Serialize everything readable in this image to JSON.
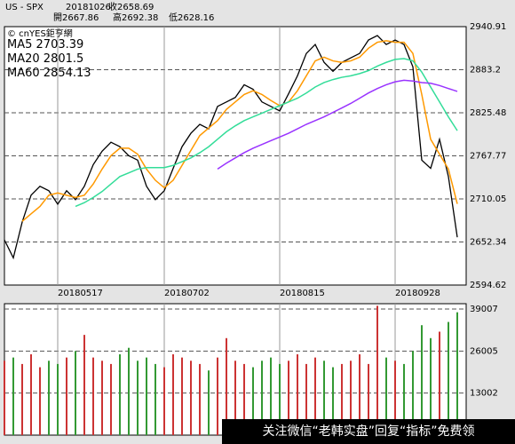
{
  "header": {
    "symbol": "US - SPX",
    "date": "20181026",
    "close": "收2658.69",
    "open": "開2667.86",
    "high": "高2692.38",
    "low": "低2628.16",
    "source": "© cnYES鉅亨網"
  },
  "banner": "关注微信“老韩实盘”回复“指标”免费领",
  "chart_data": [
    {
      "type": "line",
      "categories": [
        null,
        null,
        null,
        null,
        null,
        null,
        "20180517",
        null,
        null,
        null,
        null,
        null,
        null,
        null,
        null,
        null,
        null,
        null,
        "20180702",
        null,
        null,
        null,
        null,
        null,
        null,
        null,
        null,
        null,
        null,
        null,
        null,
        "20180815",
        null,
        null,
        null,
        null,
        null,
        null,
        null,
        null,
        null,
        null,
        null,
        null,
        "20180928",
        null,
        null,
        null,
        null,
        null,
        null,
        null
      ],
      "ylim": [
        2594.62,
        2940.91
      ],
      "yticks": [
        2594.62,
        2652.34,
        2710.05,
        2767.77,
        2825.48,
        2883.2,
        2940.91
      ],
      "grid": true,
      "series": [
        {
          "color": "#000000",
          "values": [
            2655,
            2631,
            2679,
            2715,
            2727,
            2721,
            2703,
            2721,
            2709,
            2727,
            2756,
            2774,
            2786,
            2780,
            2768,
            2762,
            2727,
            2709,
            2721,
            2751,
            2780,
            2798,
            2810,
            2804,
            2834,
            2840,
            2846,
            2863,
            2857,
            2840,
            2834,
            2828,
            2851,
            2875,
            2905,
            2917,
            2893,
            2881,
            2893,
            2899,
            2905,
            2923,
            2929,
            2917,
            2923,
            2917,
            2887,
            2762,
            2751,
            2790,
            2740,
            2658.69
          ]
        },
        {
          "name": "MA5",
          "color": "#ff9900",
          "values": [
            null,
            null,
            2680,
            2690,
            2700,
            2715,
            2718,
            2715,
            2712,
            2715,
            2730,
            2750,
            2768,
            2778,
            2778,
            2770,
            2750,
            2735,
            2725,
            2735,
            2755,
            2775,
            2795,
            2805,
            2815,
            2830,
            2840,
            2850,
            2855,
            2850,
            2842,
            2835,
            2840,
            2855,
            2875,
            2895,
            2900,
            2895,
            2893,
            2895,
            2900,
            2912,
            2920,
            2922,
            2920,
            2920,
            2905,
            2850,
            2790,
            2770,
            2750,
            2703.39
          ]
        },
        {
          "name": "MA20",
          "color": "#33dd99",
          "values": [
            null,
            null,
            null,
            null,
            null,
            null,
            null,
            null,
            2700,
            2705,
            2712,
            2720,
            2730,
            2740,
            2745,
            2750,
            2752,
            2752,
            2752,
            2755,
            2760,
            2765,
            2772,
            2780,
            2790,
            2800,
            2808,
            2815,
            2820,
            2825,
            2830,
            2835,
            2840,
            2845,
            2852,
            2860,
            2866,
            2870,
            2873,
            2875,
            2878,
            2882,
            2888,
            2893,
            2897,
            2898,
            2895,
            2880,
            2860,
            2840,
            2820,
            2801.5
          ]
        },
        {
          "name": "MA60",
          "color": "#9933ff",
          "values": [
            null,
            null,
            null,
            null,
            null,
            null,
            null,
            null,
            null,
            null,
            null,
            null,
            null,
            null,
            null,
            null,
            null,
            null,
            null,
            null,
            null,
            null,
            null,
            null,
            2750,
            2758,
            2765,
            2772,
            2778,
            2783,
            2788,
            2793,
            2798,
            2804,
            2810,
            2815,
            2820,
            2826,
            2832,
            2838,
            2845,
            2852,
            2858,
            2863,
            2867,
            2869,
            2868,
            2866,
            2865,
            2862,
            2858,
            2854.13
          ]
        }
      ]
    },
    {
      "type": "bar",
      "ylim": [
        0,
        40650
      ],
      "yticks": [
        13002,
        26005,
        39007
      ],
      "grid": true,
      "up_color": "#cc3333",
      "down_color": "#339933",
      "values": [
        23000,
        24000,
        22000,
        25000,
        21000,
        23000,
        22000,
        24000,
        26000,
        31000,
        24000,
        23000,
        22000,
        25000,
        27000,
        23000,
        24000,
        22000,
        21000,
        25000,
        24000,
        23000,
        22000,
        20000,
        24000,
        30000,
        23000,
        22000,
        21000,
        23000,
        24000,
        22000,
        23000,
        25000,
        22000,
        24000,
        23000,
        21000,
        22000,
        23000,
        25000,
        22000,
        40000,
        24000,
        23000,
        22000,
        26000,
        34000,
        30000,
        32000,
        35000,
        38000
      ]
    }
  ]
}
